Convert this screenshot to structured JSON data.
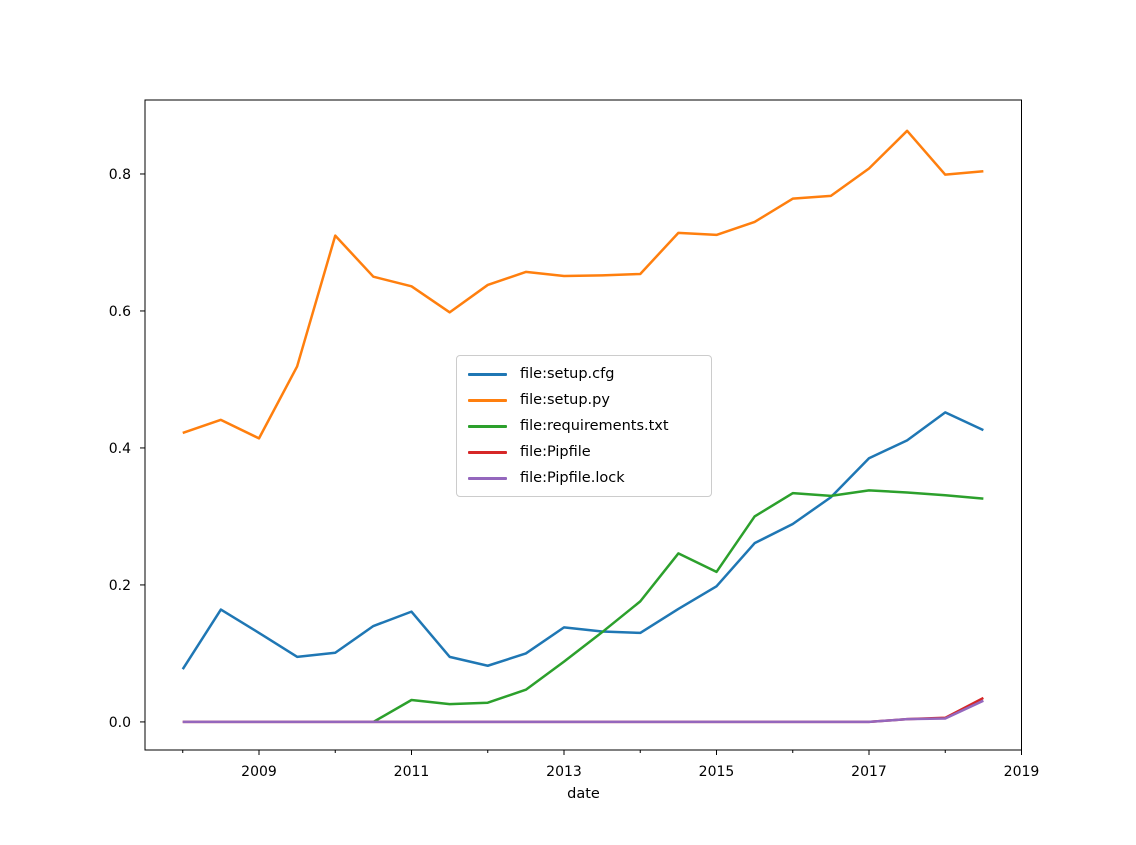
{
  "figure": {
    "background": "#ffffff"
  },
  "chart_data": {
    "type": "line",
    "title": "",
    "xlabel": "date",
    "ylabel": "",
    "grid": false,
    "legend_position": "center-left-of-plot",
    "xlim": [
      2007.505,
      2019.0
    ],
    "ylim": [
      -0.041,
      0.908
    ],
    "x_tick_labels": [
      "2009",
      "2011",
      "2013",
      "2015",
      "2017",
      "2019"
    ],
    "x_ticks_major": [
      2009,
      2011,
      2013,
      2015,
      2017,
      2019
    ],
    "x_ticks_minor": [
      2008,
      2010,
      2012,
      2014,
      2016,
      2018
    ],
    "y_tick_labels": [
      "0.0",
      "0.2",
      "0.4",
      "0.6",
      "0.8"
    ],
    "y_ticks": [
      0.0,
      0.2,
      0.4,
      0.6,
      0.8
    ],
    "x": [
      2008.0,
      2008.5,
      2009.0,
      2009.5,
      2010.0,
      2010.5,
      2011.0,
      2011.5,
      2012.0,
      2012.5,
      2013.0,
      2013.5,
      2014.0,
      2014.5,
      2015.0,
      2015.5,
      2016.0,
      2016.5,
      2017.0,
      2017.5,
      2018.0,
      2018.5
    ],
    "series": [
      {
        "name": "file:setup.cfg",
        "color": "#1f77b4",
        "values": [
          0.077,
          0.164,
          0.13,
          0.095,
          0.101,
          0.14,
          0.161,
          0.095,
          0.082,
          0.1,
          0.138,
          0.132,
          0.13,
          0.165,
          0.198,
          0.261,
          0.289,
          0.328,
          0.385,
          0.411,
          0.452,
          0.426
        ]
      },
      {
        "name": "file:setup.py",
        "color": "#ff7f0e",
        "values": [
          0.422,
          0.441,
          0.414,
          0.519,
          0.71,
          0.65,
          0.636,
          0.598,
          0.638,
          0.657,
          0.651,
          0.652,
          0.654,
          0.714,
          0.711,
          0.73,
          0.764,
          0.768,
          0.808,
          0.863,
          0.799,
          0.804
        ]
      },
      {
        "name": "file:requirements.txt",
        "color": "#2ca02c",
        "values": [
          null,
          null,
          null,
          null,
          null,
          0.0,
          0.032,
          0.026,
          0.028,
          0.047,
          0.088,
          0.131,
          0.176,
          0.246,
          0.219,
          0.3,
          0.334,
          0.33,
          0.338,
          0.335,
          0.331,
          0.326
        ]
      },
      {
        "name": "file:Pipfile",
        "color": "#d62728",
        "values": [
          0.0,
          0.0,
          0.0,
          0.0,
          0.0,
          0.0,
          0.0,
          0.0,
          0.0,
          0.0,
          0.0,
          0.0,
          0.0,
          0.0,
          0.0,
          0.0,
          0.0,
          0.0,
          0.0,
          0.004,
          0.006,
          0.035
        ]
      },
      {
        "name": "file:Pipfile.lock",
        "color": "#9467bd",
        "values": [
          0.0,
          0.0,
          0.0,
          0.0,
          0.0,
          0.0,
          0.0,
          0.0,
          0.0,
          0.0,
          0.0,
          0.0,
          0.0,
          0.0,
          0.0,
          0.0,
          0.0,
          0.0,
          0.0,
          0.004,
          0.005,
          0.031
        ]
      }
    ]
  }
}
